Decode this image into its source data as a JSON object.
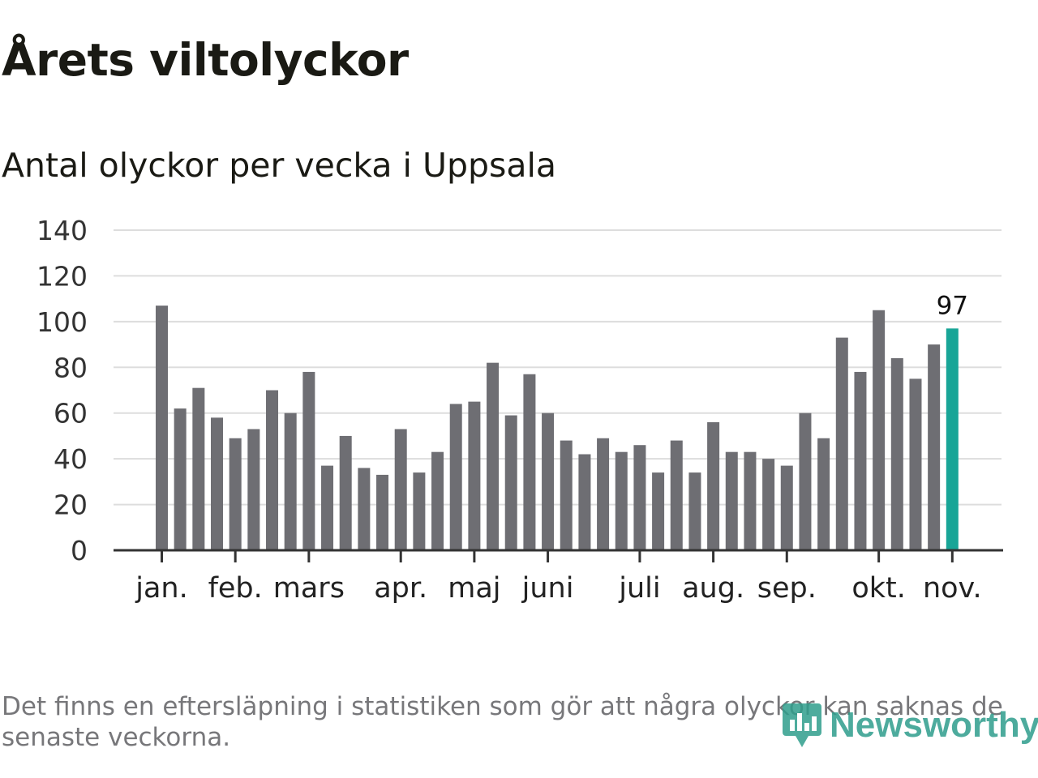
{
  "header": {
    "title": "Årets viltolyckor",
    "subtitle": "Antal olyckor per vecka i Uppsala"
  },
  "footer": {
    "note": "Det finns en eftersläpning i statistiken som gör att några olyckor kan saknas de senaste veckorna.",
    "brand": "Newsworthy"
  },
  "colors": {
    "bar": "#6e6e73",
    "highlight": "#18a597",
    "grid": "#dddddd",
    "axis": "#333333",
    "brand": "#2f9d8c"
  },
  "chart_data": {
    "type": "bar",
    "title": "Årets viltolyckor",
    "subtitle": "Antal olyckor per vecka i Uppsala",
    "xlabel": "",
    "ylabel": "",
    "ylim": [
      0,
      140
    ],
    "yticks": [
      0,
      20,
      40,
      60,
      80,
      100,
      120,
      140
    ],
    "grid": true,
    "values": [
      107,
      62,
      71,
      58,
      49,
      53,
      70,
      60,
      78,
      37,
      50,
      36,
      33,
      53,
      34,
      43,
      64,
      65,
      82,
      59,
      77,
      60,
      48,
      42,
      49,
      43,
      46,
      34,
      48,
      34,
      56,
      43,
      43,
      40,
      37,
      60,
      49,
      93,
      78,
      105,
      84,
      75,
      90,
      97
    ],
    "highlight_index": 43,
    "data_labels": [
      {
        "index": 43,
        "label": "97"
      }
    ],
    "month_ticks": [
      {
        "label": "jan.",
        "week": 1
      },
      {
        "label": "feb.",
        "week": 5
      },
      {
        "label": "mars",
        "week": 9
      },
      {
        "label": "apr.",
        "week": 14
      },
      {
        "label": "maj",
        "week": 18
      },
      {
        "label": "juni",
        "week": 22
      },
      {
        "label": "juli",
        "week": 27
      },
      {
        "label": "aug.",
        "week": 31
      },
      {
        "label": "sep.",
        "week": 35
      },
      {
        "label": "okt.",
        "week": 40
      },
      {
        "label": "nov.",
        "week": 44
      }
    ]
  }
}
